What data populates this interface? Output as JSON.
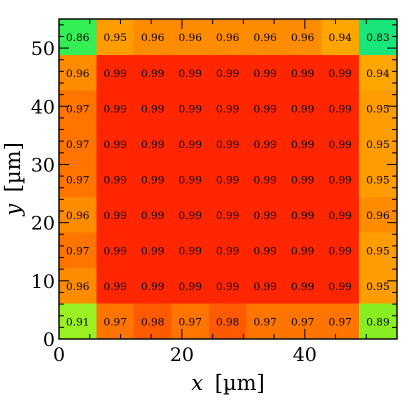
{
  "chart_data": {
    "type": "heatmap",
    "title": "",
    "xlabel_var": "x",
    "xlabel_unit": "[µm]",
    "ylabel_var": "y",
    "ylabel_unit": "[µm]",
    "xlim": [
      0,
      55
    ],
    "ylim": [
      0,
      55
    ],
    "x_ticks": [
      0,
      20,
      40
    ],
    "y_ticks": [
      0,
      10,
      20,
      30,
      40,
      50
    ],
    "grid": false,
    "colorbar": false,
    "x_bin_edges": [
      0,
      6.1,
      12.2,
      18.3,
      24.4,
      30.5,
      36.6,
      42.7,
      48.8,
      55
    ],
    "y_bin_edges": [
      0,
      6.1,
      12.2,
      18.3,
      24.4,
      30.5,
      36.6,
      42.7,
      48.8,
      55
    ],
    "values_top_to_bottom": [
      [
        "0.86",
        "0.95",
        "0.96",
        "0.96",
        "0.96",
        "0.96",
        "0.96",
        "0.94",
        "0.83"
      ],
      [
        "0.96",
        "0.99",
        "0.99",
        "0.99",
        "0.99",
        "0.99",
        "0.99",
        "0.99",
        "0.94"
      ],
      [
        "0.97",
        "0.99",
        "0.99",
        "0.99",
        "0.99",
        "0.99",
        "0.99",
        "0.99",
        "0.95"
      ],
      [
        "0.97",
        "0.99",
        "0.99",
        "0.99",
        "0.99",
        "0.99",
        "0.99",
        "0.99",
        "0.95"
      ],
      [
        "0.97",
        "0.99",
        "0.99",
        "0.99",
        "0.99",
        "0.99",
        "0.99",
        "0.99",
        "0.95"
      ],
      [
        "0.96",
        "0.99",
        "0.99",
        "0.99",
        "0.99",
        "0.99",
        "0.99",
        "0.99",
        "0.96"
      ],
      [
        "0.97",
        "0.99",
        "0.99",
        "0.99",
        "0.99",
        "0.99",
        "0.99",
        "0.99",
        "0.95"
      ],
      [
        "0.96",
        "0.99",
        "0.99",
        "0.99",
        "0.99",
        "0.99",
        "0.99",
        "0.99",
        "0.95"
      ],
      [
        "0.91",
        "0.97",
        "0.98",
        "0.97",
        "0.98",
        "0.97",
        "0.97",
        "0.97",
        "0.89"
      ]
    ],
    "color_scale": [
      {
        "value": 0.83,
        "color": "#19e67a"
      },
      {
        "value": 0.86,
        "color": "#33ee55"
      },
      {
        "value": 0.89,
        "color": "#88ee22"
      },
      {
        "value": 0.91,
        "color": "#99f022"
      },
      {
        "value": 0.94,
        "color": "#ffa500"
      },
      {
        "value": 0.95,
        "color": "#ff9c00"
      },
      {
        "value": 0.96,
        "color": "#ff8c00"
      },
      {
        "value": 0.97,
        "color": "#ff7500"
      },
      {
        "value": 0.98,
        "color": "#ff5a00"
      },
      {
        "value": 0.99,
        "color": "#ff2600"
      }
    ]
  }
}
